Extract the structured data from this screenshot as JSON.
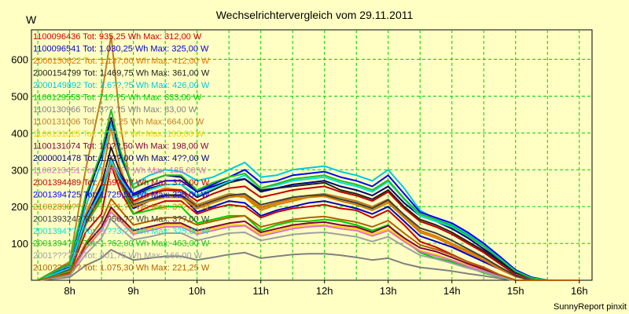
{
  "chart_data": {
    "type": "line",
    "title": "Wechselrichtervergleich vom 29.11.2011",
    "ylabel": "W",
    "credit": "SunnyReport pinxit",
    "grid": true,
    "xlim": [
      7.4,
      16.2
    ],
    "ylim": [
      0,
      680
    ],
    "x_ticks": [
      8,
      9,
      10,
      11,
      12,
      13,
      14,
      15,
      16
    ],
    "x_tick_labels": [
      "8h",
      "9h",
      "10h",
      "11h",
      "12h",
      "13h",
      "14h",
      "15h",
      "16h"
    ],
    "y_ticks": [
      100,
      200,
      300,
      400,
      500,
      600
    ],
    "x": [
      7.5,
      8.0,
      8.25,
      8.5,
      8.65,
      8.8,
      9.0,
      9.25,
      9.5,
      9.75,
      10.0,
      10.25,
      10.5,
      10.75,
      11.0,
      11.25,
      11.5,
      11.75,
      12.0,
      12.25,
      12.5,
      12.75,
      13.0,
      13.25,
      13.5,
      13.75,
      14.0,
      14.25,
      14.5,
      14.75,
      15.0,
      15.25,
      15.5,
      15.75,
      16.0
    ],
    "series": [
      {
        "name": "1100096436",
        "label": "1100096436 Tot: 935,25 Wh Max: 312,00 W",
        "color": "#cc0000",
        "values": [
          0,
          20,
          130,
          180,
          312,
          240,
          180,
          200,
          215,
          215,
          180,
          195,
          205,
          200,
          170,
          185,
          195,
          200,
          205,
          195,
          190,
          170,
          190,
          150,
          105,
          90,
          70,
          50,
          35,
          15,
          0,
          0,
          0,
          0,
          0
        ]
      },
      {
        "name": "1100096541",
        "label": "1100096541 Tot: 1.030,25 Wh Max: 325,00 W",
        "color": "#0000cc",
        "values": [
          0,
          25,
          150,
          230,
          325,
          260,
          195,
          215,
          230,
          230,
          185,
          200,
          215,
          210,
          175,
          190,
          200,
          210,
          215,
          205,
          195,
          180,
          200,
          160,
          120,
          105,
          90,
          70,
          50,
          30,
          10,
          0,
          0,
          0,
          0
        ]
      },
      {
        "name": "2000150622",
        "label": "2000150622 Tot: 1.137,00 Wh Max: 412,00 W",
        "color": "#e07800",
        "values": [
          0,
          30,
          180,
          280,
          412,
          300,
          215,
          235,
          250,
          245,
          200,
          215,
          230,
          225,
          190,
          205,
          215,
          225,
          230,
          220,
          210,
          195,
          215,
          170,
          130,
          115,
          95,
          75,
          55,
          30,
          10,
          0,
          0,
          0,
          0
        ]
      },
      {
        "name": "2000154799",
        "label": "2000154799 Tot: 1.469,75 Wh Max: 361,00 W",
        "color": "#202020",
        "values": [
          0,
          35,
          170,
          260,
          361,
          290,
          230,
          250,
          260,
          260,
          225,
          245,
          265,
          275,
          245,
          250,
          255,
          260,
          265,
          245,
          235,
          220,
          245,
          200,
          165,
          150,
          130,
          105,
          80,
          50,
          20,
          5,
          0,
          0,
          0
        ]
      },
      {
        "name": "2000149892",
        "label": "2000149892 Tot: 1.6??,?5 Wh Max: 426,00 W",
        "color": "#00c8e0",
        "values": [
          0,
          40,
          200,
          320,
          426,
          330,
          260,
          285,
          300,
          295,
          270,
          280,
          300,
          320,
          280,
          285,
          300,
          305,
          310,
          295,
          285,
          270,
          300,
          250,
          190,
          165,
          150,
          125,
          95,
          60,
          25,
          8,
          0,
          0,
          0
        ]
      },
      {
        "name": "1100129553",
        "label": "1100129553 Tot: 71?,?5 Wh Max: 333,00 W",
        "color": "#00cc00",
        "values": [
          0,
          25,
          150,
          220,
          333,
          260,
          180,
          190,
          200,
          200,
          155,
          165,
          175,
          175,
          135,
          150,
          160,
          160,
          165,
          160,
          150,
          135,
          150,
          110,
          75,
          60,
          50,
          35,
          20,
          8,
          0,
          0,
          0,
          0,
          0
        ]
      },
      {
        "name": "1100130966",
        "label": "1100130966 Tot: 3??,?5 Wh Max: 83,00 W",
        "color": "#808080",
        "values": [
          0,
          8,
          40,
          60,
          83,
          70,
          55,
          60,
          65,
          65,
          55,
          62,
          70,
          75,
          60,
          65,
          70,
          72,
          72,
          68,
          62,
          55,
          60,
          45,
          35,
          30,
          25,
          18,
          12,
          5,
          0,
          0,
          0,
          0,
          0
        ]
      },
      {
        "name": "1100131006",
        "label": "1100131006 Tot: ?.??,25 Wh Max: 664,00 W",
        "color": "#c08020",
        "values": [
          0,
          50,
          300,
          500,
          664,
          420,
          210,
          230,
          245,
          240,
          205,
          220,
          235,
          230,
          195,
          210,
          225,
          230,
          235,
          225,
          215,
          200,
          220,
          175,
          135,
          120,
          100,
          80,
          60,
          35,
          12,
          0,
          0,
          0,
          0
        ]
      },
      {
        "name": "1100131025",
        "label": "1100131025 Tot: ?.??,?? Wh Max: 193,00 W",
        "color": "#ffd000",
        "values": [
          0,
          15,
          90,
          140,
          193,
          165,
          130,
          140,
          150,
          150,
          130,
          140,
          150,
          150,
          125,
          135,
          145,
          150,
          150,
          145,
          140,
          125,
          140,
          110,
          80,
          70,
          55,
          40,
          28,
          12,
          0,
          0,
          0,
          0,
          0
        ]
      },
      {
        "name": "1100131074",
        "label": "1100131074 Tot: 1.0??,50 Wh Max: 198,00 W",
        "color": "#800040",
        "values": [
          0,
          15,
          95,
          145,
          198,
          170,
          135,
          145,
          155,
          155,
          135,
          145,
          155,
          160,
          130,
          140,
          150,
          155,
          158,
          150,
          145,
          130,
          148,
          115,
          88,
          78,
          62,
          45,
          30,
          14,
          0,
          0,
          0,
          0,
          0
        ]
      },
      {
        "name": "2000001478",
        "label": "2000001478 Tot: 1.?2?,00 Wh Max: 4??,00 W",
        "color": "#000080",
        "values": [
          0,
          45,
          220,
          340,
          441,
          340,
          250,
          270,
          285,
          280,
          240,
          255,
          270,
          275,
          240,
          250,
          260,
          265,
          270,
          255,
          245,
          230,
          255,
          210,
          175,
          160,
          140,
          115,
          85,
          55,
          22,
          6,
          0,
          0,
          0
        ]
      },
      {
        "name": "1100213451",
        "label": "1100213451 Tot: ??8?,?? Wh Max: 185,00 W",
        "color": "#e070c0",
        "values": [
          0,
          14,
          85,
          135,
          185,
          160,
          125,
          135,
          145,
          145,
          125,
          135,
          145,
          148,
          120,
          130,
          140,
          145,
          148,
          140,
          135,
          120,
          135,
          105,
          78,
          66,
          54,
          38,
          25,
          10,
          0,
          0,
          0,
          0,
          0
        ]
      },
      {
        "name": "2001394489",
        "label": "2001394489 Tot: 1.59?,?? Wh Max: 3?3,00 W",
        "color": "#c00000",
        "values": [
          0,
          30,
          160,
          240,
          333,
          270,
          215,
          235,
          245,
          245,
          215,
          235,
          250,
          255,
          225,
          235,
          245,
          250,
          255,
          240,
          230,
          215,
          240,
          195,
          160,
          145,
          125,
          100,
          75,
          45,
          15,
          0,
          0,
          0,
          0
        ]
      },
      {
        "name": "2001394725",
        "label": "2001394725 Tot: 1.725,50 Wh Max: 325,00 W",
        "color": "#0000ff",
        "values": [
          0,
          35,
          170,
          250,
          325,
          280,
          235,
          255,
          270,
          270,
          240,
          260,
          280,
          300,
          265,
          270,
          285,
          290,
          295,
          280,
          270,
          255,
          285,
          235,
          185,
          170,
          155,
          130,
          100,
          65,
          28,
          8,
          0,
          0,
          0
        ]
      },
      {
        "name": "2100289826",
        "label": "21002898?? Tot: 1.??1,?? Wh Max: 3??,00 W",
        "color": "#d08000",
        "values": [
          0,
          28,
          150,
          230,
          320,
          260,
          200,
          215,
          225,
          225,
          195,
          210,
          225,
          230,
          200,
          210,
          220,
          225,
          228,
          215,
          205,
          190,
          210,
          170,
          135,
          120,
          100,
          80,
          60,
          35,
          12,
          0,
          0,
          0,
          0
        ]
      },
      {
        "name": "2001393249",
        "label": "200139324? Tot: 1.?56,?? Wh Max: 3??,00 W",
        "color": "#404040",
        "values": [
          0,
          30,
          155,
          235,
          330,
          265,
          205,
          220,
          232,
          232,
          200,
          215,
          230,
          235,
          205,
          215,
          225,
          230,
          232,
          220,
          210,
          195,
          218,
          178,
          142,
          128,
          108,
          85,
          62,
          36,
          12,
          0,
          0,
          0,
          0
        ]
      },
      {
        "name": "2001394???",
        "label": "2001394??? Tot: ?.??3,?? Wh Max: 325,00 W",
        "color": "#00e0e0",
        "values": [
          0,
          33,
          165,
          245,
          325,
          275,
          225,
          245,
          260,
          260,
          230,
          250,
          268,
          285,
          250,
          258,
          270,
          275,
          280,
          265,
          255,
          240,
          268,
          220,
          175,
          160,
          145,
          120,
          92,
          60,
          25,
          6,
          0,
          0,
          0
        ]
      },
      {
        "name": "2001394???b",
        "label": "2001394??? Tot: 1.?62,00 Wh Max: 463,00 W",
        "color": "#20c020",
        "values": [
          0,
          45,
          230,
          350,
          463,
          350,
          250,
          270,
          285,
          285,
          245,
          265,
          280,
          290,
          250,
          262,
          275,
          280,
          285,
          270,
          260,
          245,
          272,
          222,
          180,
          165,
          148,
          122,
          92,
          58,
          24,
          6,
          0,
          0,
          0
        ]
      },
      {
        "name": "2001??????",
        "label": "2001?????? Tot: 801,75 Wh Max: 166,00 W",
        "color": "#a0a0a0",
        "values": [
          0,
          12,
          70,
          115,
          166,
          140,
          110,
          118,
          128,
          128,
          108,
          118,
          128,
          130,
          108,
          116,
          124,
          128,
          130,
          124,
          118,
          105,
          118,
          92,
          68,
          58,
          46,
          33,
          22,
          9,
          0,
          0,
          0,
          0,
          0
        ]
      },
      {
        "name": "2100??????",
        "label": "2100?????? Tot: 1.075,30 Wh Max: 221,25 W",
        "color": "#b06000",
        "values": [
          0,
          18,
          100,
          160,
          221,
          190,
          150,
          160,
          170,
          170,
          150,
          160,
          170,
          175,
          145,
          155,
          165,
          170,
          173,
          165,
          158,
          145,
          162,
          128,
          96,
          84,
          68,
          50,
          34,
          15,
          0,
          0,
          0,
          0,
          0
        ]
      }
    ]
  }
}
